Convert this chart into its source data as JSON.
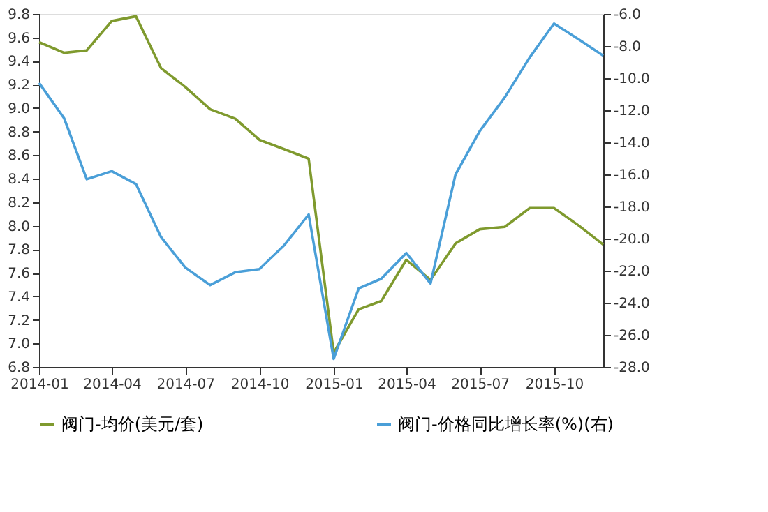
{
  "chart_data": {
    "type": "line",
    "x": [
      "2014-01",
      "2014-02",
      "2014-03",
      "2014-04",
      "2014-05",
      "2014-06",
      "2014-07",
      "2014-08",
      "2014-09",
      "2014-10",
      "2014-11",
      "2014-12",
      "2015-01",
      "2015-02",
      "2015-03",
      "2015-04",
      "2015-05",
      "2015-06",
      "2015-07",
      "2015-08",
      "2015-09",
      "2015-10",
      "2015-11",
      "2015-12"
    ],
    "xlim": [
      "2014-01",
      "2015-12"
    ],
    "xticks": [
      "2014-01",
      "2014-04",
      "2014-07",
      "2014-10",
      "2015-01",
      "2015-04",
      "2015-07",
      "2015-10"
    ],
    "series": [
      {
        "name": "阀门-均价(美元/套)",
        "color": "#7f9a2e",
        "values": [
          9.56,
          9.47,
          9.49,
          9.74,
          9.78,
          9.34,
          9.18,
          8.99,
          8.91,
          8.73,
          8.65,
          8.57,
          6.92,
          7.29,
          7.36,
          7.71,
          7.54,
          7.85,
          7.97,
          7.99,
          8.15,
          8.15,
          8.0,
          7.84
        ]
      },
      {
        "name": "阀门-价格同比增长率(%)(右)",
        "color": "#4a9fd8",
        "axis": "y2",
        "values": [
          -10.3,
          -12.5,
          -16.3,
          -15.8,
          -16.6,
          -19.9,
          -21.8,
          -22.9,
          -22.1,
          -21.9,
          -20.4,
          -18.5,
          -27.5,
          -23.1,
          -22.5,
          -20.9,
          -22.8,
          -16.0,
          -13.3,
          -11.2,
          -8.7,
          -6.6,
          -7.6,
          -8.6
        ]
      }
    ],
    "ylim": [
      6.8,
      9.8
    ],
    "yticks": [
      6.8,
      {
        "value": 7.0,
        "label": "7.0"
      },
      7.2,
      7.4,
      7.6,
      7.8,
      {
        "value": 8.0,
        "label": "8.0"
      },
      8.2,
      8.4,
      8.6,
      8.8,
      {
        "value": 9.0,
        "label": "9.0"
      },
      9.2,
      9.4,
      9.6,
      9.8
    ],
    "y2lim": [
      -28,
      -6
    ],
    "y2ticks": [
      {
        "value": -28,
        "label": "-28.0"
      },
      {
        "value": -26,
        "label": "-26.0"
      },
      {
        "value": -24,
        "label": "-24.0"
      },
      {
        "value": -22,
        "label": "-22.0"
      },
      {
        "value": -20,
        "label": "-20.0"
      },
      {
        "value": -18,
        "label": "-18.0"
      },
      {
        "value": -16,
        "label": "-16.0"
      },
      {
        "value": -14,
        "label": "-14.0"
      },
      {
        "value": -12,
        "label": "-12.0"
      },
      {
        "value": -10,
        "label": "-10.0"
      },
      {
        "value": -8,
        "label": "-8.0"
      },
      {
        "value": -6,
        "label": "-6.0"
      }
    ],
    "grid": false,
    "legend": "bottom",
    "marker": "none",
    "line_style": "solid"
  }
}
